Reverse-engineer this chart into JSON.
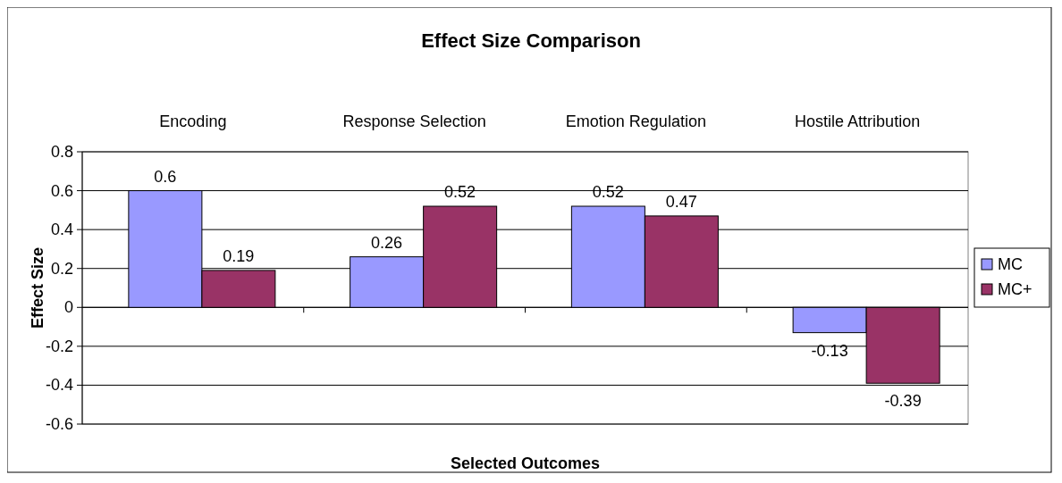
{
  "chart_data": {
    "type": "bar",
    "title": "Effect Size Comparison",
    "xlabel": "Selected Outcomes",
    "ylabel": "Effect Size",
    "categories": [
      "Encoding",
      "Response Selection",
      "Emotion Regulation",
      "Hostile Attribution"
    ],
    "series": [
      {
        "name": "MC",
        "color": "#9999ff",
        "values": [
          0.6,
          0.26,
          0.52,
          -0.13
        ]
      },
      {
        "name": "MC+",
        "color": "#993366",
        "values": [
          0.19,
          0.52,
          0.47,
          -0.39
        ]
      }
    ],
    "ylim": [
      -0.6,
      0.8
    ],
    "yticks": [
      -0.6,
      -0.4,
      -0.2,
      0,
      0.2,
      0.4,
      0.6,
      0.8
    ],
    "grid": "y",
    "legend": "right",
    "data_labels": true
  }
}
